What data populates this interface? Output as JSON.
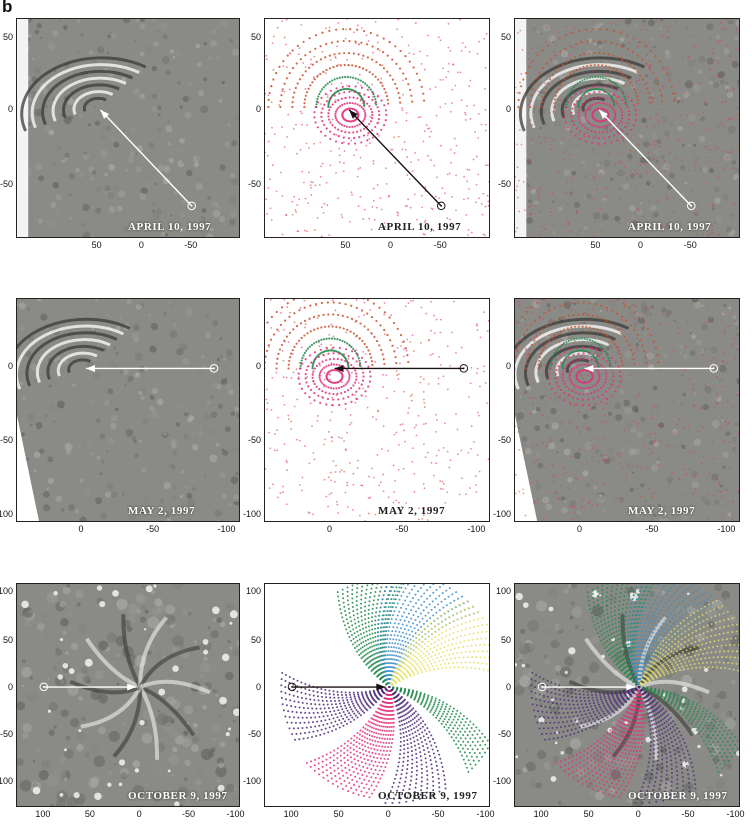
{
  "panel_letter": "b",
  "rows": [
    {
      "date": "APRIL 10, 1997",
      "x_ticks": [
        "50",
        "0",
        "-50"
      ],
      "y_ticks": [
        "50",
        "0",
        "-50"
      ],
      "sun_marker": "⊙"
    },
    {
      "date": "MAY 2, 1997",
      "x_ticks": [
        "0",
        "-50",
        "-100"
      ],
      "y_ticks": [
        "0",
        "-50",
        "-100"
      ],
      "sun_marker": "⊙"
    },
    {
      "date": "OCTOBER 9, 1997",
      "x_ticks": [
        "100",
        "50",
        "0",
        "-50",
        "-100"
      ],
      "y_ticks": [
        "100",
        "50",
        "0",
        "-50",
        "-100"
      ],
      "sun_marker": "⊙"
    }
  ],
  "column_types": [
    "observation",
    "model",
    "overlay"
  ],
  "colors": {
    "magenta": "#e0307a",
    "green": "#1e8a4a",
    "orange": "#c8502a",
    "blue": "#3a8ec8",
    "yellow": "#e6e26a",
    "purple": "#4a2a7a",
    "gray_bg": "#8a8a86"
  }
}
